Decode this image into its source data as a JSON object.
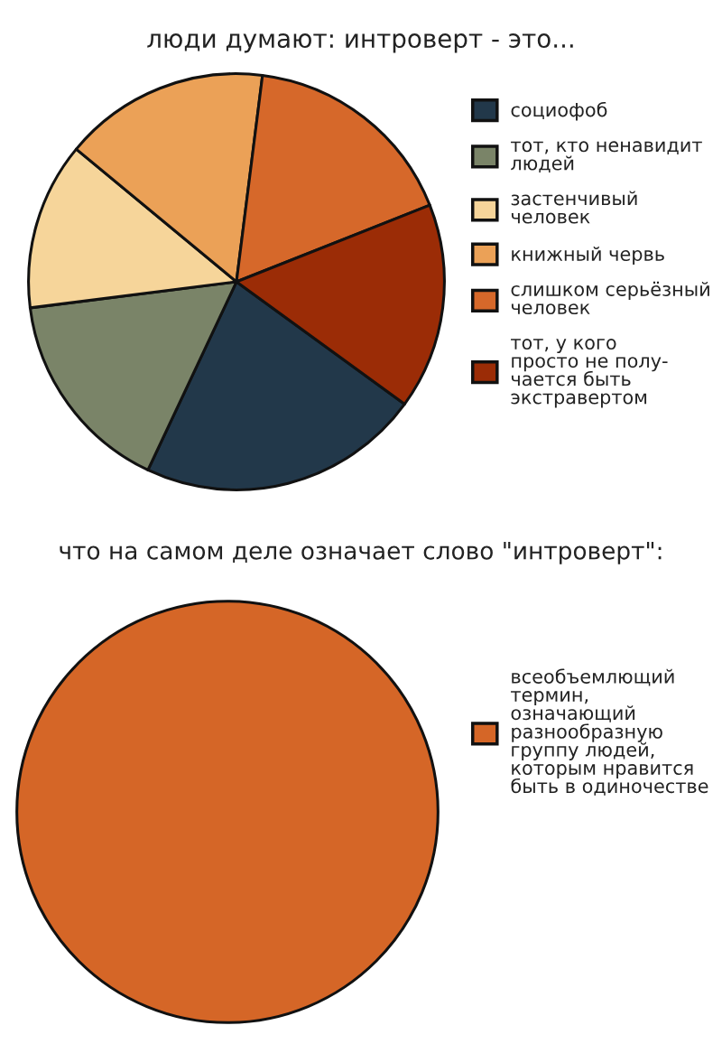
{
  "chart_data": [
    {
      "type": "pie",
      "title": "люди думают: интроверт - это...",
      "categories": [
        "социофоб",
        "тот, кто ненавидит\nлюдей",
        "застенчивый\nчеловек",
        "книжный червь",
        "слишком серьёзный\nчеловек",
        "тот, у кого\nпросто не полу-\nчается быть\nэкстравертом"
      ],
      "values": [
        22,
        16,
        13,
        16,
        17,
        16
      ],
      "colors": [
        "#22384a",
        "#7a8468",
        "#f6d59a",
        "#eba157",
        "#d6682a",
        "#9b2c06"
      ],
      "legend": "right"
    },
    {
      "type": "pie",
      "title": "что на самом деле означает слово \"интроверт\":",
      "categories": [
        "всеобъемлющий\nтермин,\nозначающий\nразнообразную\nгруппу людей,\nкоторым нравится\nбыть в одиночестве"
      ],
      "values": [
        100
      ],
      "colors": [
        "#d56627"
      ],
      "legend": "right"
    }
  ]
}
